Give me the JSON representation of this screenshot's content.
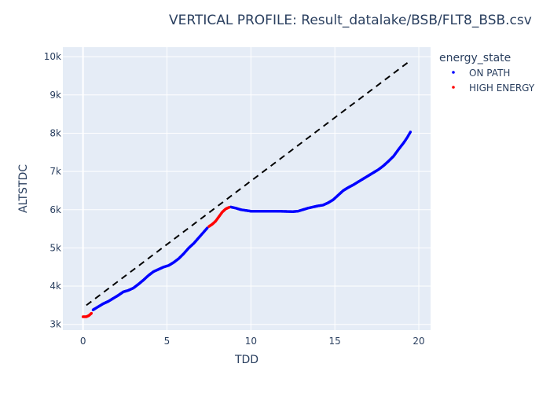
{
  "chart_data": {
    "type": "scatter",
    "title": "VERTICAL PROFILE: Result_datalake/BSB/FLT8_BSB.csv",
    "xlabel": "TDD",
    "ylabel": "ALTSTDC",
    "xlim": [
      -1.2,
      20.7
    ],
    "ylim": [
      2850,
      10250
    ],
    "x_ticks": [
      0,
      5,
      10,
      15,
      20
    ],
    "x_tick_labels": [
      "0",
      "5",
      "10",
      "15",
      "20"
    ],
    "y_ticks": [
      3000,
      4000,
      5000,
      6000,
      7000,
      8000,
      9000,
      10000
    ],
    "y_tick_labels": [
      "3k",
      "4k",
      "5k",
      "6k",
      "7k",
      "8k",
      "9k",
      "10k"
    ],
    "grid": true,
    "legend": {
      "title": "energy_state",
      "placement": "right",
      "entries": [
        {
          "name": "ON PATH",
          "color": "#0000ff"
        },
        {
          "name": "HIGH ENERGY",
          "color": "#ff0000"
        }
      ]
    },
    "series": [
      {
        "name": "ON PATH",
        "color": "#0000ff",
        "mode": "markers",
        "points": [
          [
            0.6,
            3380
          ],
          [
            0.9,
            3460
          ],
          [
            1.2,
            3540
          ],
          [
            1.5,
            3600
          ],
          [
            1.8,
            3680
          ],
          [
            2.1,
            3760
          ],
          [
            2.4,
            3850
          ],
          [
            2.7,
            3890
          ],
          [
            3.0,
            3950
          ],
          [
            3.3,
            4050
          ],
          [
            3.6,
            4160
          ],
          [
            3.9,
            4280
          ],
          [
            4.2,
            4380
          ],
          [
            4.5,
            4440
          ],
          [
            4.8,
            4500
          ],
          [
            5.1,
            4540
          ],
          [
            5.4,
            4620
          ],
          [
            5.7,
            4720
          ],
          [
            6.0,
            4850
          ],
          [
            6.3,
            5000
          ],
          [
            6.6,
            5120
          ],
          [
            6.9,
            5270
          ],
          [
            7.2,
            5420
          ],
          [
            7.4,
            5520
          ],
          [
            8.8,
            6070
          ],
          [
            9.1,
            6040
          ],
          [
            9.4,
            6000
          ],
          [
            9.7,
            5980
          ],
          [
            10.0,
            5960
          ],
          [
            10.5,
            5960
          ],
          [
            11.0,
            5960
          ],
          [
            11.5,
            5960
          ],
          [
            12.0,
            5955
          ],
          [
            12.5,
            5950
          ],
          [
            12.8,
            5960
          ],
          [
            13.1,
            6000
          ],
          [
            13.4,
            6040
          ],
          [
            13.7,
            6070
          ],
          [
            14.0,
            6100
          ],
          [
            14.3,
            6120
          ],
          [
            14.6,
            6180
          ],
          [
            14.9,
            6260
          ],
          [
            15.2,
            6380
          ],
          [
            15.5,
            6500
          ],
          [
            15.8,
            6580
          ],
          [
            16.1,
            6650
          ],
          [
            16.4,
            6730
          ],
          [
            16.7,
            6810
          ],
          [
            17.0,
            6890
          ],
          [
            17.3,
            6970
          ],
          [
            17.6,
            7050
          ],
          [
            17.9,
            7150
          ],
          [
            18.2,
            7270
          ],
          [
            18.5,
            7400
          ],
          [
            18.8,
            7580
          ],
          [
            19.1,
            7750
          ],
          [
            19.3,
            7880
          ],
          [
            19.5,
            8030
          ]
        ]
      },
      {
        "name": "HIGH ENERGY",
        "color": "#ff0000",
        "mode": "markers",
        "points": [
          [
            0.0,
            3200
          ],
          [
            0.2,
            3200
          ],
          [
            0.35,
            3230
          ],
          [
            0.5,
            3290
          ],
          [
            7.5,
            5560
          ],
          [
            7.7,
            5620
          ],
          [
            7.9,
            5700
          ],
          [
            8.1,
            5820
          ],
          [
            8.3,
            5940
          ],
          [
            8.5,
            6020
          ],
          [
            8.7,
            6060
          ]
        ]
      },
      {
        "name": "",
        "color": "#000000",
        "mode": "dashed-line",
        "points": [
          [
            0.2,
            3500
          ],
          [
            19.5,
            9900
          ]
        ]
      }
    ]
  }
}
